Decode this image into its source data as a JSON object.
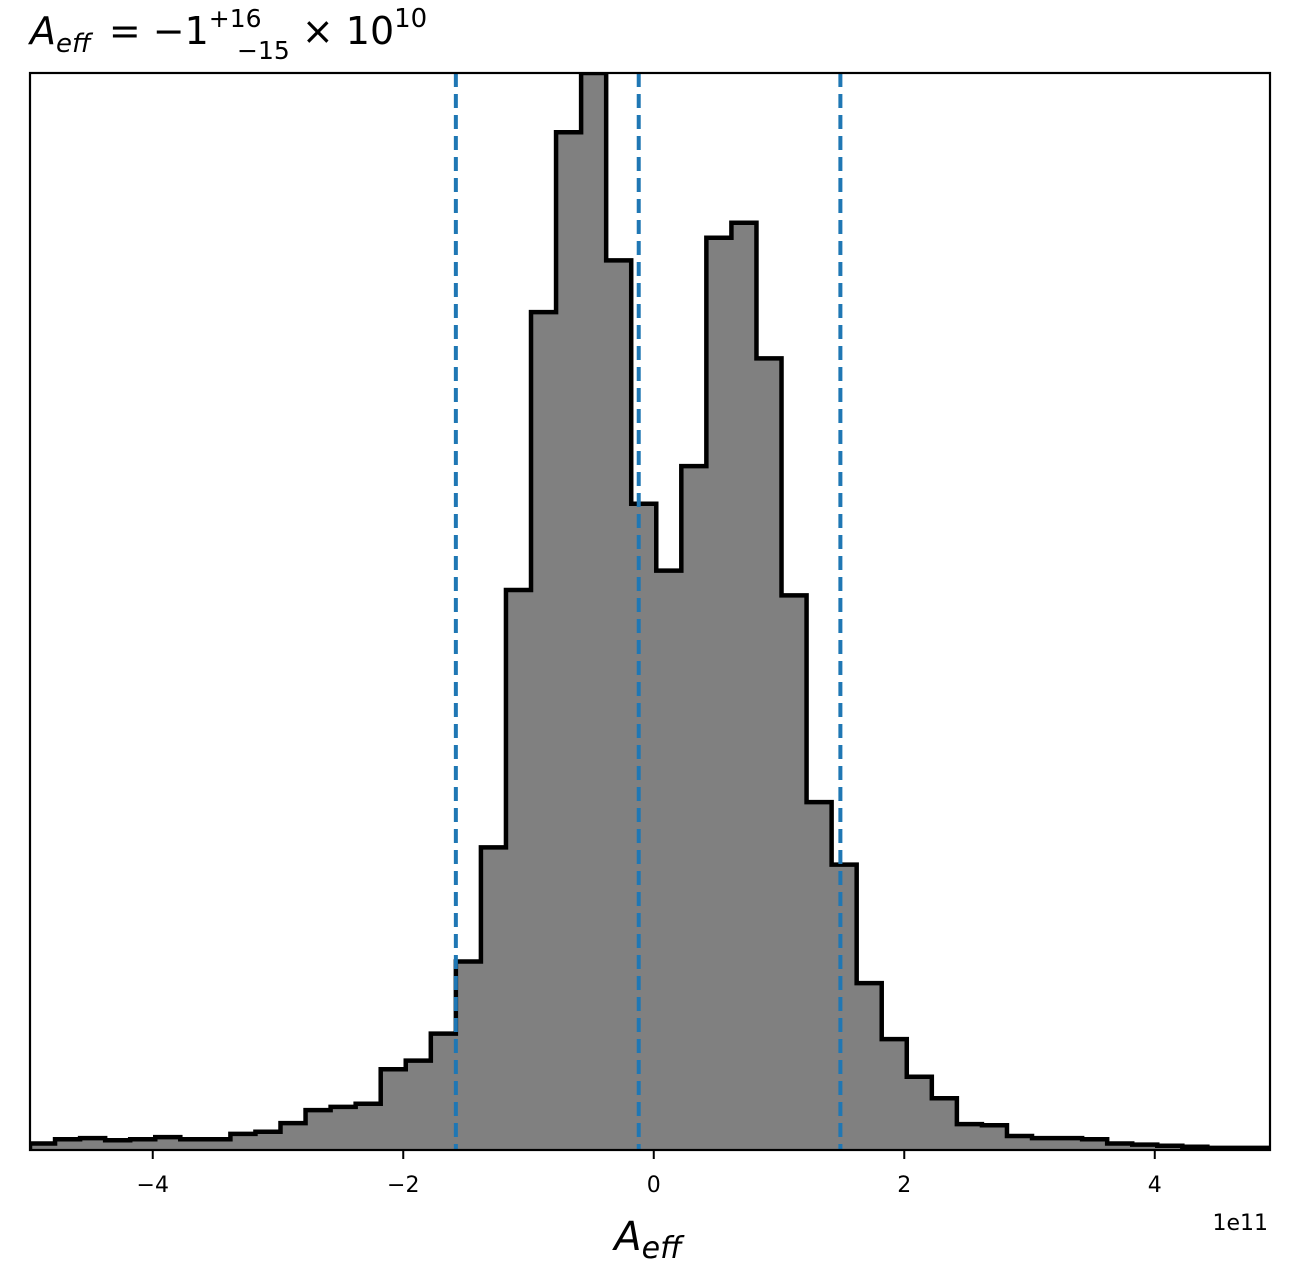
{
  "chart_data": {
    "type": "histogram",
    "title": {
      "symbol": "A",
      "symbol_sub": "eff",
      "relation": " = −1",
      "err_plus": "+16",
      "err_minus": "−15",
      "times": " × 10",
      "exponent": "10"
    },
    "xlabel": {
      "symbol": "A",
      "sub": "eff"
    },
    "x_offset_label": "1e11",
    "x_scale_factor": 100000000000.0,
    "xlim": [
      -4.98,
      4.92
    ],
    "ylim": [
      0,
      1.0
    ],
    "xticks": [
      -4,
      -2,
      0,
      2,
      4
    ],
    "xtick_labels": [
      "−4",
      "−2",
      "0",
      "2",
      "4"
    ],
    "y_ticks_visible": false,
    "bin_edges": [
      -4.98,
      -4.78,
      -4.58,
      -4.38,
      -4.18,
      -3.98,
      -3.78,
      -3.58,
      -3.38,
      -3.18,
      -2.98,
      -2.78,
      -2.58,
      -2.38,
      -2.18,
      -1.98,
      -1.78,
      -1.58,
      -1.38,
      -1.18,
      -0.98,
      -0.78,
      -0.58,
      -0.38,
      -0.18,
      0.02,
      0.22,
      0.42,
      0.62,
      0.82,
      1.02,
      1.22,
      1.42,
      1.62,
      1.82,
      2.02,
      2.22,
      2.42,
      2.62,
      2.82,
      3.02,
      3.22,
      3.42,
      3.62,
      3.82,
      4.02,
      4.22,
      4.42,
      4.62,
      4.82,
      4.92
    ],
    "counts": [
      0.006,
      0.01,
      0.011,
      0.009,
      0.01,
      0.012,
      0.01,
      0.01,
      0.015,
      0.017,
      0.025,
      0.037,
      0.04,
      0.043,
      0.075,
      0.083,
      0.108,
      0.175,
      0.281,
      0.52,
      0.778,
      0.945,
      1.0,
      0.826,
      0.6,
      0.538,
      0.635,
      0.847,
      0.861,
      0.735,
      0.515,
      0.323,
      0.265,
      0.155,
      0.103,
      0.068,
      0.048,
      0.024,
      0.023,
      0.013,
      0.011,
      0.011,
      0.01,
      0.006,
      0.005,
      0.004,
      0.003,
      0.002,
      0.002,
      0.002
    ],
    "vlines": [
      -1.58,
      -0.12,
      1.49
    ],
    "colors": {
      "fill": "#808080",
      "edge": "#000000",
      "vline": "#1f77b4"
    }
  }
}
